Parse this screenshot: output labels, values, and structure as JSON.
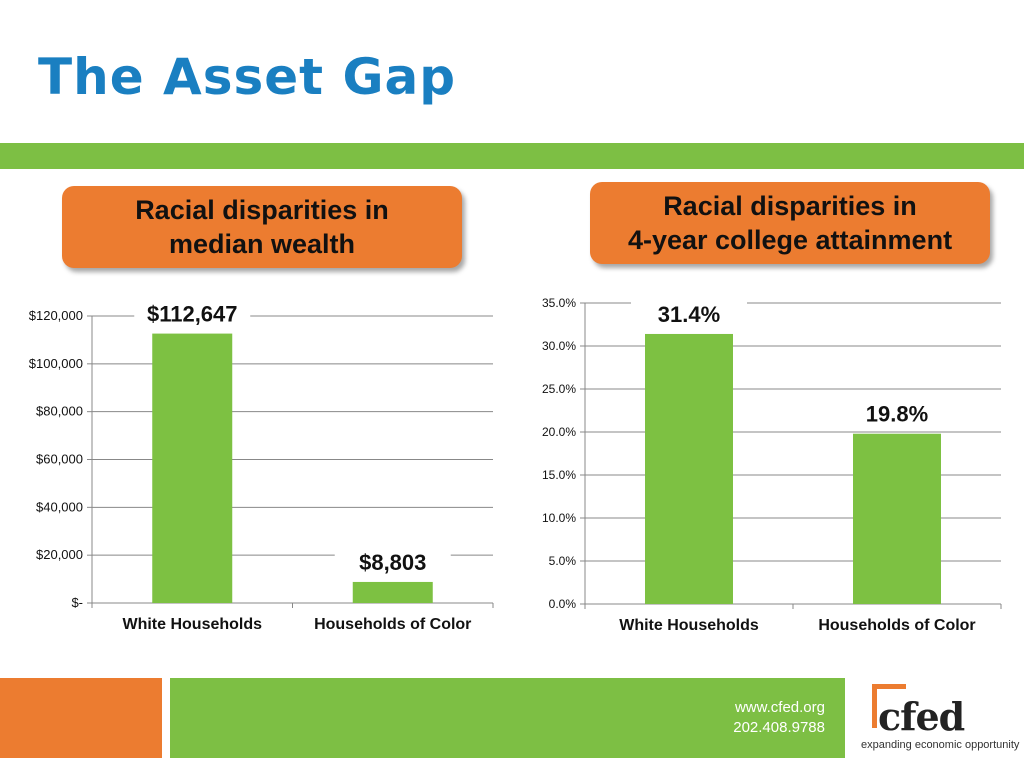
{
  "slide": {
    "title": "The Asset Gap"
  },
  "left_panel": {
    "header_line1": "Racial disparities in",
    "header_line2": "median wealth"
  },
  "right_panel": {
    "header_line1": "Racial disparities in",
    "header_line2": "4-year college attainment"
  },
  "footer": {
    "url": "www.cfed.org",
    "phone": "202.408.9788",
    "logo_word": "cfed",
    "logo_tagline": "expanding economic opportunity"
  },
  "colors": {
    "title": "#1a7fc1",
    "accent_green": "#7dbf44",
    "accent_orange": "#ec7c30",
    "bar": "#7dc142"
  },
  "chart_data": [
    {
      "type": "bar",
      "categories": [
        "White Households",
        "Households of Color"
      ],
      "values": [
        112647,
        8803
      ],
      "data_labels": [
        "$112,647",
        "$8,803"
      ],
      "ylim": [
        0,
        120000
      ],
      "yticks": [
        0,
        20000,
        40000,
        60000,
        80000,
        100000,
        120000
      ],
      "ytick_labels": [
        "$-",
        "$20,000",
        "$40,000",
        "$60,000",
        "$80,000",
        "$100,000",
        "$120,000"
      ],
      "grid": true
    },
    {
      "type": "bar",
      "categories": [
        "White Households",
        "Households of Color"
      ],
      "values": [
        31.4,
        19.8
      ],
      "data_labels": [
        "31.4%",
        "19.8%"
      ],
      "ylim": [
        0,
        35
      ],
      "yticks": [
        0,
        5,
        10,
        15,
        20,
        25,
        30,
        35
      ],
      "ytick_labels": [
        "0.0%",
        "5.0%",
        "10.0%",
        "15.0%",
        "20.0%",
        "25.0%",
        "30.0%",
        "35.0%"
      ],
      "grid": true
    }
  ]
}
